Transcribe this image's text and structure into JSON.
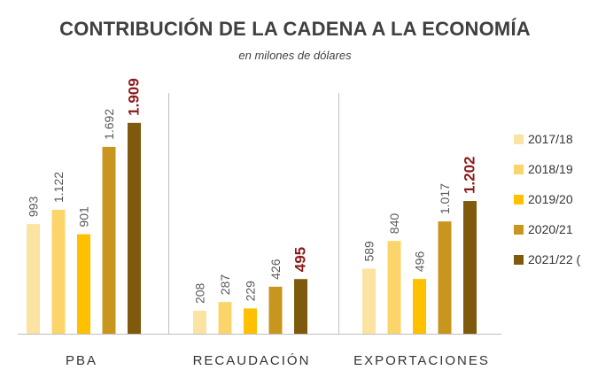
{
  "title": "CONTRIBUCIÓN DE LA CADENA A LA ECONOMÍA",
  "subtitle": "en milones de dólares",
  "colors": {
    "series": [
      "#fbe3a1",
      "#fcd56a",
      "#ffc000",
      "#c8961e",
      "#7f5a0d"
    ],
    "highlight_label": "#8b1a1a",
    "value_label": "#595959",
    "axis": "#bfbfbf",
    "category_label": "#333333"
  },
  "chart_data": {
    "type": "bar",
    "title": "CONTRIBUCIÓN DE LA CADENA A LA ECONOMÍA",
    "subtitle": "en milones de dólares",
    "categories": [
      "PBA",
      "RECAUDACIÓN",
      "EXPORTACIONES"
    ],
    "series": [
      {
        "name": "2017/18",
        "values": [
          993,
          208,
          589
        ],
        "labels": [
          "993",
          "208",
          "589"
        ]
      },
      {
        "name": "2018/19",
        "values": [
          1122,
          287,
          840
        ],
        "labels": [
          "1.122",
          "287",
          "840"
        ]
      },
      {
        "name": "2019/20",
        "values": [
          901,
          229,
          496
        ],
        "labels": [
          "901",
          "229",
          "496"
        ]
      },
      {
        "name": "2020/21",
        "values": [
          1692,
          426,
          1017
        ],
        "labels": [
          "1.692",
          "426",
          "1.017"
        ]
      },
      {
        "name": "2021/22 (",
        "values": [
          1909,
          495,
          1202
        ],
        "labels": [
          "1.909",
          "495",
          "1.202"
        ]
      }
    ],
    "highlight_series": "2021/22 (",
    "ylim": [
      0,
      2100
    ],
    "grid": false,
    "legend_position": "right"
  }
}
